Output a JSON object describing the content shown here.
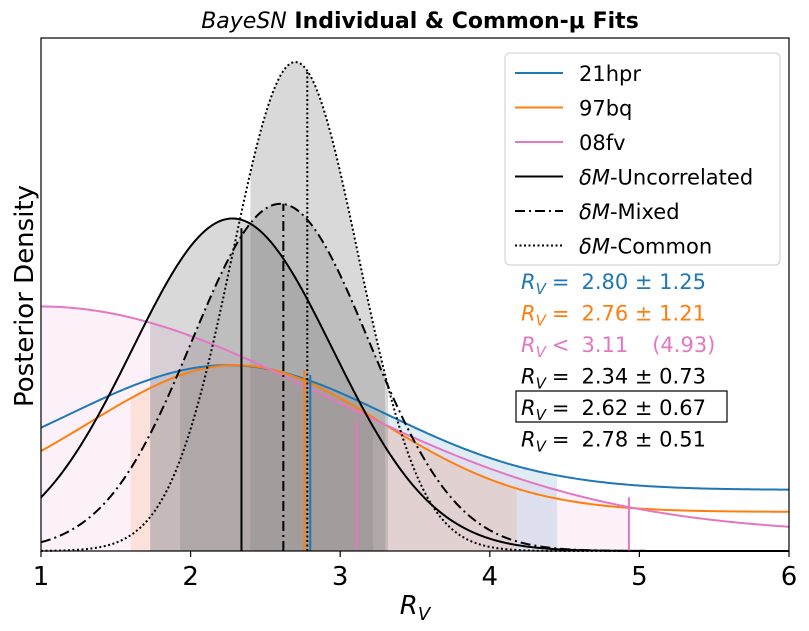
{
  "chart_data": {
    "type": "line",
    "title_italic": "BayeSN",
    "title_bold": " Individual & Common-μ Fits",
    "xlabel_main": "R",
    "xlabel_sub": "V",
    "ylabel": "Posterior Density",
    "xlim": [
      1,
      6
    ],
    "ylim": [
      0,
      1
    ],
    "xticks": [
      "1",
      "2",
      "3",
      "4",
      "5",
      "6"
    ],
    "series": [
      {
        "name": "21hpr",
        "key": "s21hpr",
        "color": "#1f77b4",
        "dash": "",
        "peak_x": 2.25,
        "peak_y": 0.38,
        "sigma": 1.06,
        "floor": 0.125,
        "floor_y": 0.125,
        "shade_range": [
          1.73,
          4.45
        ],
        "shade_color": "#1f77b4",
        "shade_opacity": 0.14,
        "marker_x": 2.8,
        "marker_ymax": 0.36
      },
      {
        "name": "97bq",
        "key": "s97bq",
        "color": "#ff7f0e",
        "dash": "",
        "peak_x": 2.3,
        "peak_y": 0.38,
        "sigma": 0.98,
        "floor": 0.08,
        "shade_range": [
          1.6,
          4.18
        ],
        "shade_color": "#ff7f0e",
        "shade_opacity": 0.14,
        "marker_x": 2.76,
        "marker_ymax": 0.37
      },
      {
        "name": "08fv",
        "key": "s08fv",
        "color": "#e377c2",
        "dash": "",
        "peak_x": 1.0,
        "peak_y": 0.5,
        "sigma": 1.9,
        "floor": 0.035,
        "shade_range": [
          1.0,
          4.93
        ],
        "shade_color": "#e377c2",
        "shade_opacity": 0.1,
        "marker_x": 3.11,
        "marker_ymax": 0.27,
        "marker2_x": 4.93,
        "marker2_ymax": 0.11
      },
      {
        "name": "δM-Uncorrelated",
        "key": "unc",
        "color": "#000000",
        "dash": "",
        "peak_x": 2.28,
        "peak_y": 0.68,
        "sigma": 0.67,
        "floor": 0.0,
        "shade_range": [
          1.73,
          3.22
        ],
        "shade_color": "#808080",
        "shade_opacity": 0.3,
        "marker_x": 2.34,
        "marker_ymax": 0.66
      },
      {
        "name": "δM-Mixed",
        "key": "mix",
        "color": "#000000",
        "dash": "10,4,2,4",
        "peak_x": 2.6,
        "peak_y": 0.71,
        "sigma": 0.59,
        "floor": 0.0,
        "shade_range": [
          1.93,
          3.3
        ],
        "shade_color": "#808080",
        "shade_opacity": 0.3,
        "marker_x": 2.62,
        "marker_ymax": 0.71
      },
      {
        "name": "δM-Common",
        "key": "com",
        "color": "#000000",
        "dash": "2,2.5",
        "peak_x": 2.7,
        "peak_y": 1.0,
        "sigma": 0.42,
        "floor": 0.0,
        "shade_range": [
          2.4,
          3.32
        ],
        "shade_color": "#808080",
        "shade_opacity": 0.3,
        "marker_x": 2.78,
        "marker_ymax": 0.98
      }
    ],
    "legend_position": "top-right",
    "legend_entries": [
      {
        "label": "21hpr",
        "color": "#1f77b4",
        "dash": "",
        "italic_prefix": ""
      },
      {
        "label": "97bq",
        "color": "#ff7f0e",
        "dash": "",
        "italic_prefix": ""
      },
      {
        "label": "08fv",
        "color": "#e377c2",
        "dash": "",
        "italic_prefix": ""
      },
      {
        "label": "-Uncorrelated",
        "color": "#000000",
        "dash": "",
        "italic_prefix": "δM"
      },
      {
        "label": "-Mixed",
        "color": "#000000",
        "dash": "10,4,2,4",
        "italic_prefix": "δM"
      },
      {
        "label": "-Common",
        "color": "#000000",
        "dash": "2,2.5",
        "italic_prefix": "δM"
      }
    ],
    "annotations": [
      {
        "op": "=",
        "value": "2.80 ± 1.25",
        "extra": "",
        "color": "#1f77b4",
        "boxed": false
      },
      {
        "op": "=",
        "value": "2.76 ± 1.21",
        "extra": "",
        "color": "#ff7f0e",
        "boxed": false
      },
      {
        "op": "<",
        "value": "3.11",
        "extra": "(4.93)",
        "color": "#e377c2",
        "boxed": false
      },
      {
        "op": "=",
        "value": "2.34 ± 0.73",
        "extra": "",
        "color": "#000000",
        "boxed": false
      },
      {
        "op": "=",
        "value": "2.62 ± 0.67",
        "extra": "",
        "color": "#000000",
        "boxed": true
      },
      {
        "op": "=",
        "value": "2.78 ± 0.51",
        "extra": "",
        "color": "#000000",
        "boxed": false
      }
    ]
  }
}
